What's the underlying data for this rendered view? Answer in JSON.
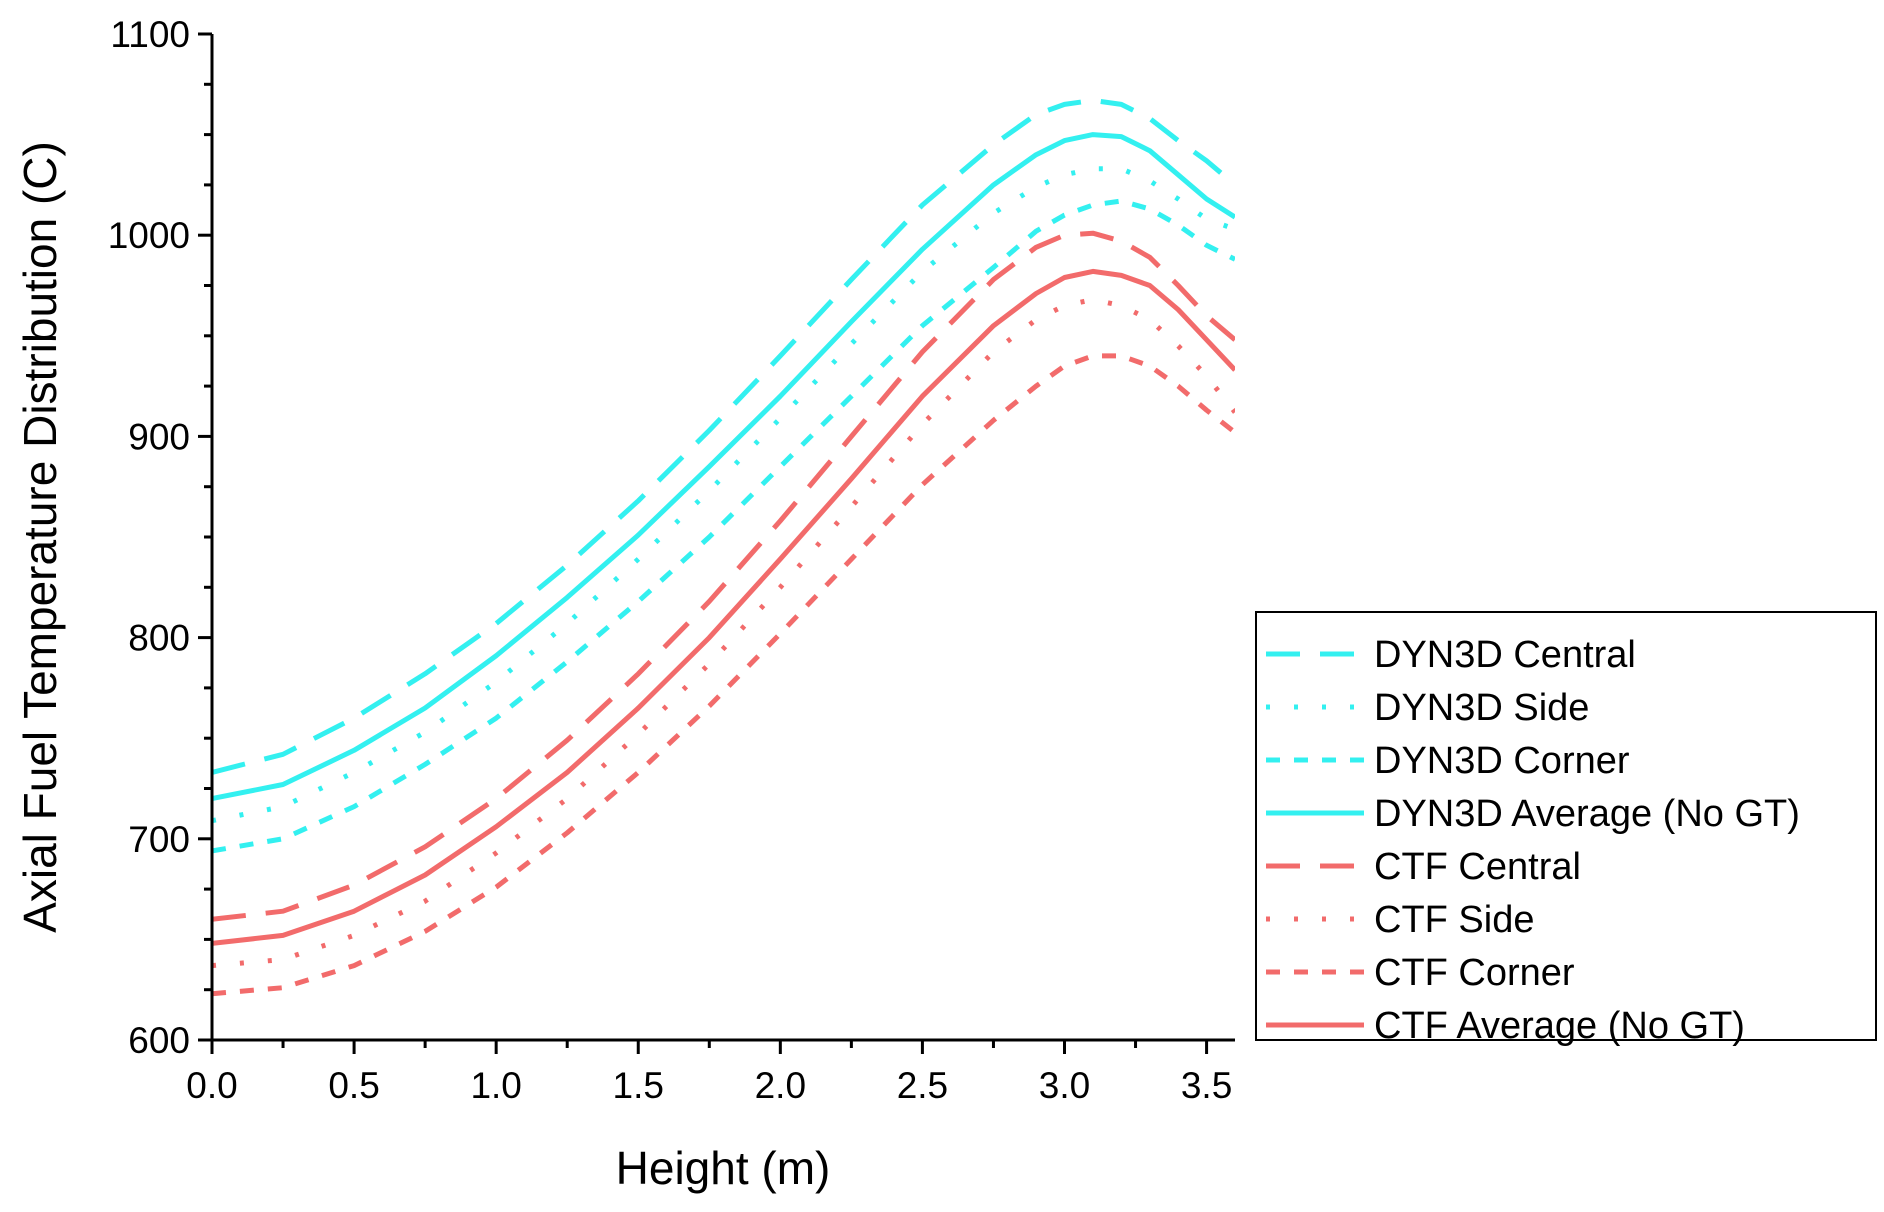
{
  "chart_data": {
    "type": "line",
    "title": "",
    "xlabel": "Height (m)",
    "ylabel": "Axial Fuel Temperature Distribution (C)",
    "xlim": [
      0.0,
      3.6
    ],
    "ylim": [
      600,
      1100
    ],
    "xticks": [
      0.0,
      0.5,
      1.0,
      1.5,
      2.0,
      2.5,
      3.0,
      3.5
    ],
    "xtick_labels": [
      "0.0",
      "0.5",
      "1.0",
      "1.5",
      "2.0",
      "2.5",
      "3.0",
      "3.5"
    ],
    "yticks": [
      600,
      700,
      800,
      900,
      1000,
      1100
    ],
    "ytick_labels": [
      "600",
      "700",
      "800",
      "900",
      "1000",
      "1100"
    ],
    "grid": false,
    "legend_position": "right",
    "colors": {
      "dyn3d": "#33f0f0",
      "ctf": "#f26b6b"
    },
    "x": [
      0.0,
      0.25,
      0.5,
      0.75,
      1.0,
      1.25,
      1.5,
      1.75,
      2.0,
      2.25,
      2.5,
      2.75,
      2.9,
      3.0,
      3.1,
      3.2,
      3.3,
      3.4,
      3.5,
      3.6
    ],
    "series": [
      {
        "name": "DYN3D Central",
        "color_key": "dyn3d",
        "style": "dash",
        "values": [
          733,
          742,
          760,
          782,
          807,
          836,
          868,
          903,
          940,
          978,
          1015,
          1045,
          1060,
          1065,
          1067,
          1065,
          1058,
          1047,
          1037,
          1025
        ]
      },
      {
        "name": "DYN3D Side",
        "color_key": "dyn3d",
        "style": "dot",
        "values": [
          709,
          716,
          733,
          753,
          778,
          807,
          839,
          873,
          909,
          946,
          982,
          1011,
          1024,
          1030,
          1033,
          1033,
          1027,
          1018,
          1008,
          1003
        ]
      },
      {
        "name": "DYN3D Corner",
        "color_key": "dyn3d",
        "style": "shortdash",
        "values": [
          694,
          700,
          716,
          737,
          760,
          788,
          818,
          850,
          885,
          920,
          955,
          984,
          1002,
          1010,
          1015,
          1017,
          1013,
          1005,
          995,
          988
        ]
      },
      {
        "name": "DYN3D Average (No GT)",
        "color_key": "dyn3d",
        "style": "solid",
        "values": [
          720,
          727,
          744,
          765,
          791,
          820,
          851,
          885,
          920,
          957,
          993,
          1025,
          1040,
          1047,
          1050,
          1049,
          1042,
          1030,
          1018,
          1009
        ]
      },
      {
        "name": "CTF Central",
        "color_key": "ctf",
        "style": "dash",
        "values": [
          660,
          664,
          677,
          696,
          720,
          749,
          782,
          818,
          858,
          900,
          942,
          978,
          994,
          1000,
          1001,
          997,
          989,
          975,
          960,
          948
        ]
      },
      {
        "name": "CTF Side",
        "color_key": "ctf",
        "style": "dot",
        "values": [
          637,
          640,
          652,
          669,
          693,
          720,
          752,
          787,
          825,
          865,
          906,
          942,
          958,
          965,
          968,
          965,
          958,
          945,
          930,
          912
        ]
      },
      {
        "name": "CTF Corner",
        "color_key": "ctf",
        "style": "shortdash",
        "values": [
          623,
          626,
          637,
          654,
          676,
          703,
          733,
          766,
          802,
          839,
          876,
          908,
          925,
          935,
          940,
          940,
          935,
          925,
          913,
          902
        ]
      },
      {
        "name": "CTF Average (No GT)",
        "color_key": "ctf",
        "style": "solid",
        "values": [
          648,
          652,
          664,
          682,
          706,
          733,
          765,
          800,
          839,
          879,
          920,
          955,
          971,
          979,
          982,
          980,
          975,
          963,
          948,
          933
        ]
      }
    ]
  }
}
